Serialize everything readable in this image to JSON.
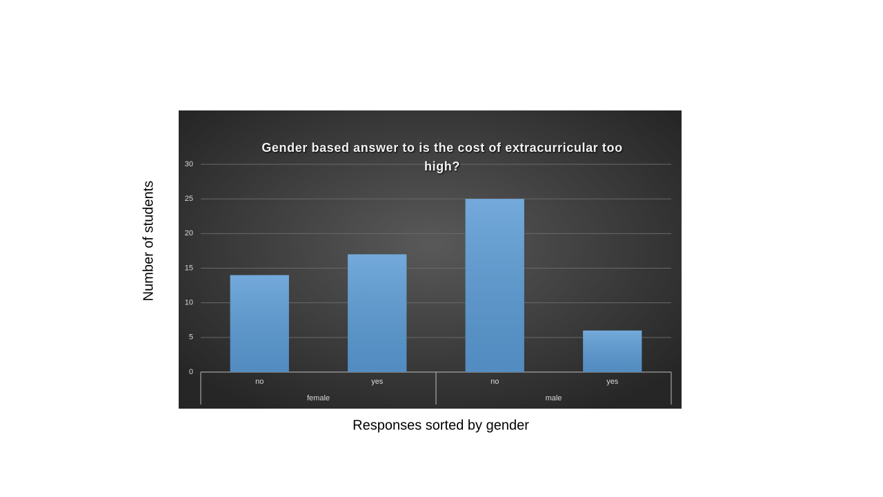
{
  "chart_data": {
    "type": "bar",
    "title": "Gender based answer to is the cost of extracurricular too high?",
    "y_label": "Number of students",
    "x_label": "Responses sorted by gender",
    "categories": [
      "no",
      "yes",
      "no",
      "yes"
    ],
    "groups": [
      "female",
      "male"
    ],
    "values": [
      14,
      17,
      25,
      6
    ],
    "color": "#5b9bd5",
    "ylim": [
      0,
      30
    ],
    "yticks": [
      0,
      5,
      10,
      15,
      20,
      25,
      30
    ],
    "grid": true
  }
}
